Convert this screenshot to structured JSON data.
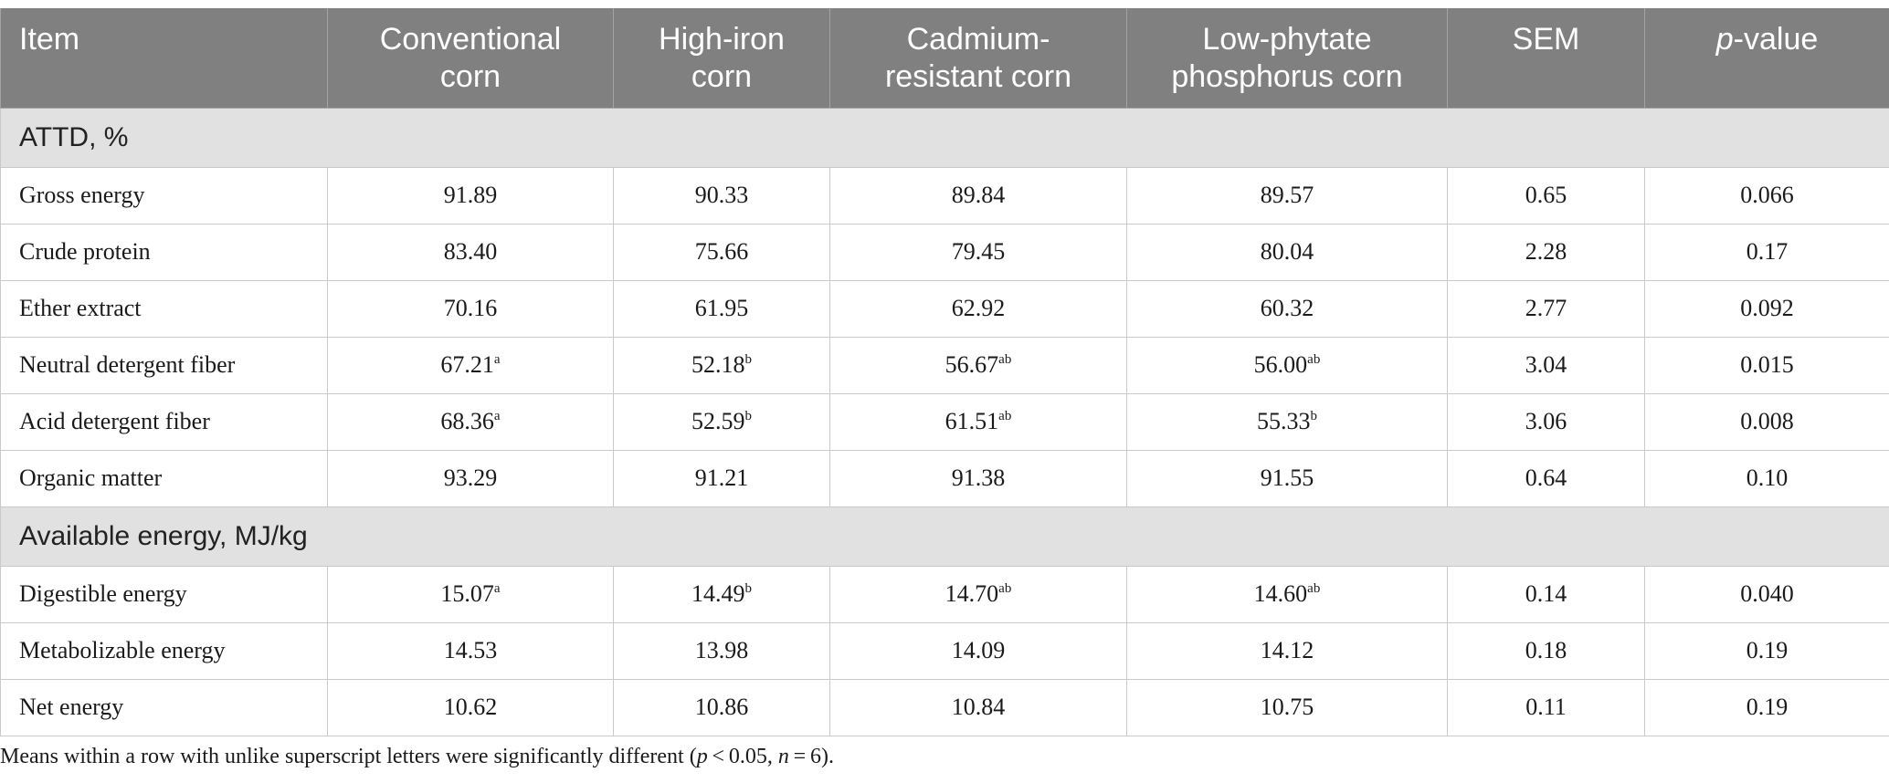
{
  "header": {
    "item": "Item",
    "conventional": [
      "Conventional",
      "corn"
    ],
    "high_iron": [
      "High-iron",
      "corn"
    ],
    "cadmium": [
      "Cadmium-",
      "resistant corn"
    ],
    "low_phytate": [
      "Low-phytate",
      "phosphorus corn"
    ],
    "sem": "SEM",
    "pvalue_italic": "p",
    "pvalue_rest": "-value"
  },
  "sections": {
    "attd": {
      "title": "ATTD, %",
      "rows": [
        {
          "item": "Gross energy",
          "c1": "91.89",
          "c1s": "",
          "c2": "90.33",
          "c2s": "",
          "c3": "89.84",
          "c3s": "",
          "c4": "89.57",
          "c4s": "",
          "sem": "0.65",
          "p": "0.066"
        },
        {
          "item": "Crude protein",
          "c1": "83.40",
          "c1s": "",
          "c2": "75.66",
          "c2s": "",
          "c3": "79.45",
          "c3s": "",
          "c4": "80.04",
          "c4s": "",
          "sem": "2.28",
          "p": "0.17"
        },
        {
          "item": "Ether extract",
          "c1": "70.16",
          "c1s": "",
          "c2": "61.95",
          "c2s": "",
          "c3": "62.92",
          "c3s": "",
          "c4": "60.32",
          "c4s": "",
          "sem": "2.77",
          "p": "0.092"
        },
        {
          "item": "Neutral detergent fiber",
          "c1": "67.21",
          "c1s": "a",
          "c2": "52.18",
          "c2s": "b",
          "c3": "56.67",
          "c3s": "ab",
          "c4": "56.00",
          "c4s": "ab",
          "sem": "3.04",
          "p": "0.015"
        },
        {
          "item": "Acid detergent fiber",
          "c1": "68.36",
          "c1s": "a",
          "c2": "52.59",
          "c2s": "b",
          "c3": "61.51",
          "c3s": "ab",
          "c4": "55.33",
          "c4s": "b",
          "sem": "3.06",
          "p": "0.008"
        },
        {
          "item": "Organic matter",
          "c1": "93.29",
          "c1s": "",
          "c2": "91.21",
          "c2s": "",
          "c3": "91.38",
          "c3s": "",
          "c4": "91.55",
          "c4s": "",
          "sem": "0.64",
          "p": "0.10"
        }
      ]
    },
    "energy": {
      "title": "Available energy, MJ/kg",
      "rows": [
        {
          "item": "Digestible energy",
          "c1": "15.07",
          "c1s": "a",
          "c2": "14.49",
          "c2s": "b",
          "c3": "14.70",
          "c3s": "ab",
          "c4": "14.60",
          "c4s": "ab",
          "sem": "0.14",
          "p": "0.040"
        },
        {
          "item": "Metabolizable energy",
          "c1": "14.53",
          "c1s": "",
          "c2": "13.98",
          "c2s": "",
          "c3": "14.09",
          "c3s": "",
          "c4": "14.12",
          "c4s": "",
          "sem": "0.18",
          "p": "0.19"
        },
        {
          "item": "Net energy",
          "c1": "10.62",
          "c1s": "",
          "c2": "10.86",
          "c2s": "",
          "c3": "10.84",
          "c3s": "",
          "c4": "10.75",
          "c4s": "",
          "sem": "0.11",
          "p": "0.19"
        }
      ]
    }
  },
  "footnote": {
    "part1": "Means within a row with unlike superscript letters were significantly different (",
    "p": "p",
    "part2": " < 0.05, ",
    "n": "n",
    "part3": " = 6)."
  }
}
